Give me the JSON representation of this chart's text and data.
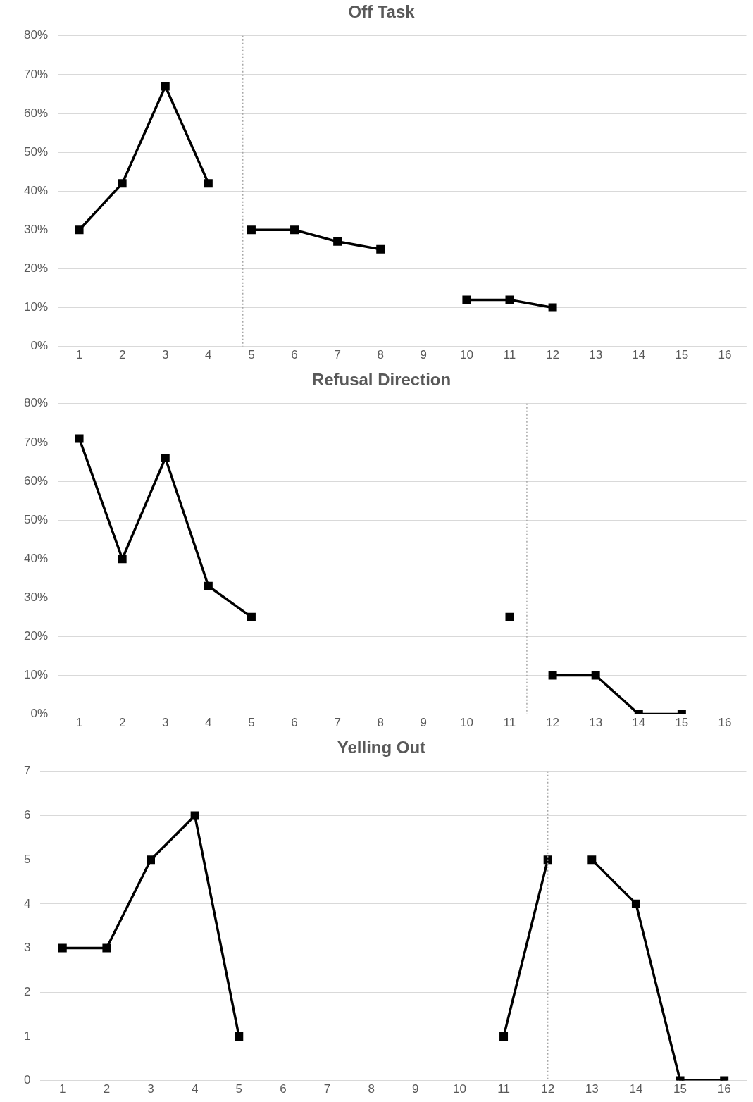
{
  "chart_data": [
    {
      "type": "line",
      "title": "Off Task",
      "x": [
        1,
        2,
        3,
        4,
        5,
        6,
        7,
        8,
        9,
        10,
        11,
        12
      ],
      "series": [
        {
          "color": "#000000",
          "values": [
            30,
            42,
            67,
            42,
            null,
            null,
            null,
            null,
            null,
            null,
            null,
            null
          ]
        },
        {
          "color": "#000000",
          "values": [
            null,
            null,
            null,
            null,
            30,
            30,
            27,
            25,
            null,
            null,
            null,
            null
          ]
        },
        {
          "color": "#000000",
          "values": [
            null,
            null,
            null,
            null,
            null,
            null,
            null,
            null,
            null,
            12,
            12,
            10
          ]
        }
      ],
      "xlim": [
        0.5,
        16.5
      ],
      "xticks": [
        1,
        2,
        3,
        4,
        5,
        6,
        7,
        8,
        9,
        10,
        11,
        12,
        13,
        14,
        15,
        16
      ],
      "ylim": [
        0,
        80
      ],
      "yticks": [
        {
          "value": 0,
          "label": "0%"
        },
        {
          "value": 10,
          "label": "10%"
        },
        {
          "value": 20,
          "label": "20%"
        },
        {
          "value": 30,
          "label": "30%"
        },
        {
          "value": 40,
          "label": "40%"
        },
        {
          "value": 50,
          "label": "50%"
        },
        {
          "value": 60,
          "label": "60%"
        },
        {
          "value": 70,
          "label": "70%"
        },
        {
          "value": 80,
          "label": "80%"
        }
      ],
      "ref_lines": [
        {
          "axis": "x",
          "value": 4.8,
          "color": "#a6a6a6",
          "line_style": "dotted"
        }
      ],
      "grid": "y",
      "legend": false,
      "marker": "square",
      "line_style": "solid"
    },
    {
      "type": "line",
      "title": "Refusal Direction",
      "x": [
        1,
        2,
        3,
        4,
        5,
        6,
        7,
        8,
        9,
        10,
        11,
        12,
        13,
        14,
        15
      ],
      "series": [
        {
          "color": "#000000",
          "values": [
            71,
            40,
            66,
            33,
            25,
            null,
            null,
            null,
            null,
            null,
            null,
            null,
            null,
            null,
            null
          ]
        },
        {
          "color": "#000000",
          "values": [
            null,
            null,
            null,
            null,
            null,
            null,
            null,
            null,
            null,
            null,
            25,
            null,
            null,
            null,
            null
          ]
        },
        {
          "color": "#000000",
          "values": [
            null,
            null,
            null,
            null,
            null,
            null,
            null,
            null,
            null,
            null,
            null,
            10,
            10,
            0,
            0
          ]
        }
      ],
      "xlim": [
        0.5,
        16.5
      ],
      "xticks": [
        1,
        2,
        3,
        4,
        5,
        6,
        7,
        8,
        9,
        10,
        11,
        12,
        13,
        14,
        15,
        16
      ],
      "ylim": [
        0,
        80
      ],
      "yticks": [
        {
          "value": 0,
          "label": "0%"
        },
        {
          "value": 10,
          "label": "10%"
        },
        {
          "value": 20,
          "label": "20%"
        },
        {
          "value": 30,
          "label": "30%"
        },
        {
          "value": 40,
          "label": "40%"
        },
        {
          "value": 50,
          "label": "50%"
        },
        {
          "value": 60,
          "label": "60%"
        },
        {
          "value": 70,
          "label": "70%"
        },
        {
          "value": 80,
          "label": "80%"
        }
      ],
      "ref_lines": [
        {
          "axis": "x",
          "value": 11.4,
          "color": "#a6a6a6",
          "line_style": "dotted"
        }
      ],
      "grid": "y",
      "legend": false,
      "marker": "square",
      "line_style": "solid"
    },
    {
      "type": "line",
      "title": "Yelling Out",
      "x": [
        1,
        2,
        3,
        4,
        5,
        6,
        7,
        8,
        9,
        10,
        11,
        12,
        13,
        14,
        15,
        16
      ],
      "series": [
        {
          "color": "#000000",
          "values": [
            3,
            3,
            5,
            6,
            1,
            null,
            null,
            null,
            null,
            null,
            null,
            null,
            null,
            null,
            null,
            null
          ]
        },
        {
          "color": "#000000",
          "values": [
            null,
            null,
            null,
            null,
            null,
            null,
            null,
            null,
            null,
            null,
            1,
            5,
            null,
            null,
            null,
            null
          ]
        },
        {
          "color": "#000000",
          "values": [
            null,
            null,
            null,
            null,
            null,
            null,
            null,
            null,
            null,
            null,
            null,
            null,
            5,
            4,
            0,
            0
          ]
        }
      ],
      "xlim": [
        0.5,
        16.5
      ],
      "xticks": [
        1,
        2,
        3,
        4,
        5,
        6,
        7,
        8,
        9,
        10,
        11,
        12,
        13,
        14,
        15,
        16
      ],
      "ylim": [
        0,
        7
      ],
      "yticks": [
        0,
        1,
        2,
        3,
        4,
        5,
        6,
        7
      ],
      "ref_lines": [
        {
          "axis": "x",
          "value": 12,
          "color": "#a6a6a6",
          "line_style": "dotted"
        }
      ],
      "grid": "y",
      "legend": false,
      "marker": "square",
      "line_style": "solid"
    }
  ]
}
